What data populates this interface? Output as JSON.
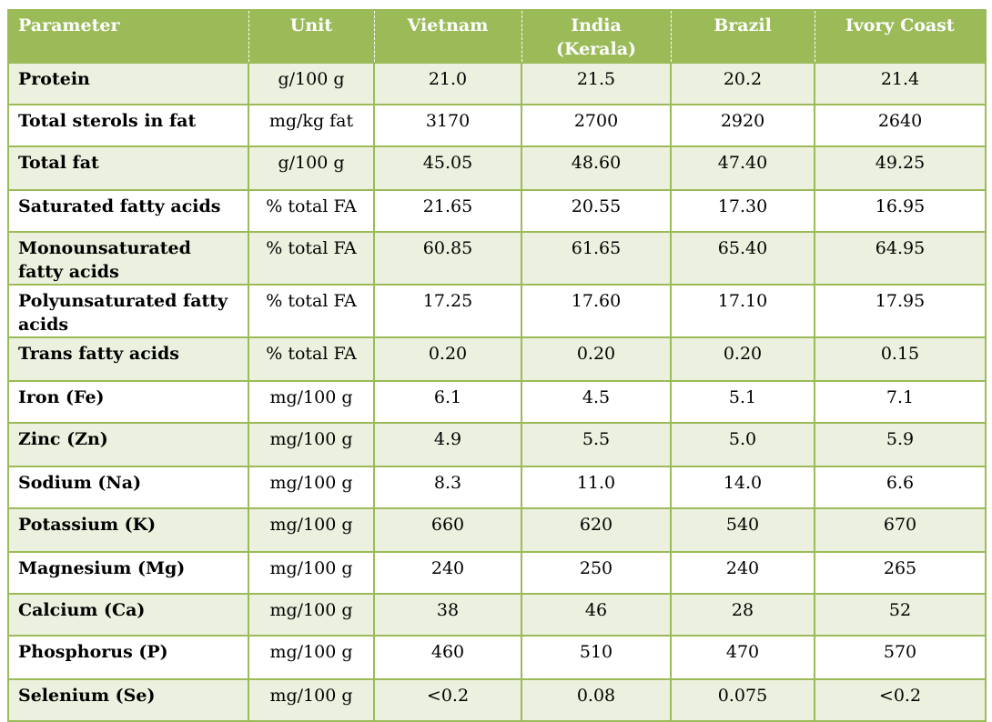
{
  "headers": [
    "Parameter",
    "Unit",
    "Vietnam",
    "India\n(Kerala)",
    "Brazil",
    "Ivory Coast"
  ],
  "header_lines": {
    "india": [
      "India",
      "(Kerala)"
    ]
  },
  "rows": [
    {
      "param": "Protein",
      "unit": "g/100 g",
      "values": [
        "21.0",
        "21.5",
        "20.2",
        "21.4"
      ]
    },
    {
      "param": "Total sterols in fat",
      "unit": "mg/kg fat",
      "values": [
        "3170",
        "2700",
        "2920",
        "2640"
      ]
    },
    {
      "param": "Total fat",
      "unit": "g/100 g",
      "values": [
        "45.05",
        "48.60",
        "47.40",
        "49.25"
      ]
    },
    {
      "param": "Saturated fatty acids",
      "unit": "% total FA",
      "values": [
        "21.65",
        "20.55",
        "17.30",
        "16.95"
      ]
    },
    {
      "param": "Monounsaturated fatty acids",
      "unit": "% total FA",
      "values": [
        "60.85",
        "61.65",
        "65.40",
        "64.95"
      ]
    },
    {
      "param": "Polyunsaturated fatty acids",
      "unit": "% total FA",
      "values": [
        "17.25",
        "17.60",
        "17.10",
        "17.95"
      ]
    },
    {
      "param": "Trans fatty acids",
      "unit": "% total FA",
      "values": [
        "0.20",
        "0.20",
        "0.20",
        "0.15"
      ]
    },
    {
      "param": "Iron (Fe)",
      "unit": "mg/100 g",
      "values": [
        "6.1",
        "4.5",
        "5.1",
        "7.1"
      ]
    },
    {
      "param": "Zinc (Zn)",
      "unit": "mg/100 g",
      "values": [
        "4.9",
        "5.5",
        "5.0",
        "5.9"
      ]
    },
    {
      "param": "Sodium (Na)",
      "unit": "mg/100 g",
      "values": [
        "8.3",
        "11.0",
        "14.0",
        "6.6"
      ]
    },
    {
      "param": "Potassium (K)",
      "unit": "mg/100 g",
      "values": [
        "660",
        "620",
        "540",
        "670"
      ]
    },
    {
      "param": "Magnesium (Mg)",
      "unit": "mg/100 g",
      "values": [
        "240",
        "250",
        "240",
        "265"
      ]
    },
    {
      "param": "Calcium (Ca)",
      "unit": "mg/100 g",
      "values": [
        "38",
        "46",
        "28",
        "52"
      ]
    },
    {
      "param": "Phosphorus (P)",
      "unit": "mg/100 g",
      "values": [
        "460",
        "510",
        "470",
        "570"
      ]
    },
    {
      "param": "Selenium (Se)",
      "unit": "mg/100 g",
      "values": [
        "<0.2",
        "0.08",
        "0.075",
        "<0.2"
      ]
    }
  ],
  "colors": {
    "header_bg": "#9bbb59",
    "header_text": "#ffffff",
    "band_odd": "#ebf1de",
    "band_even": "#ffffff",
    "border": "#9bbb59"
  }
}
